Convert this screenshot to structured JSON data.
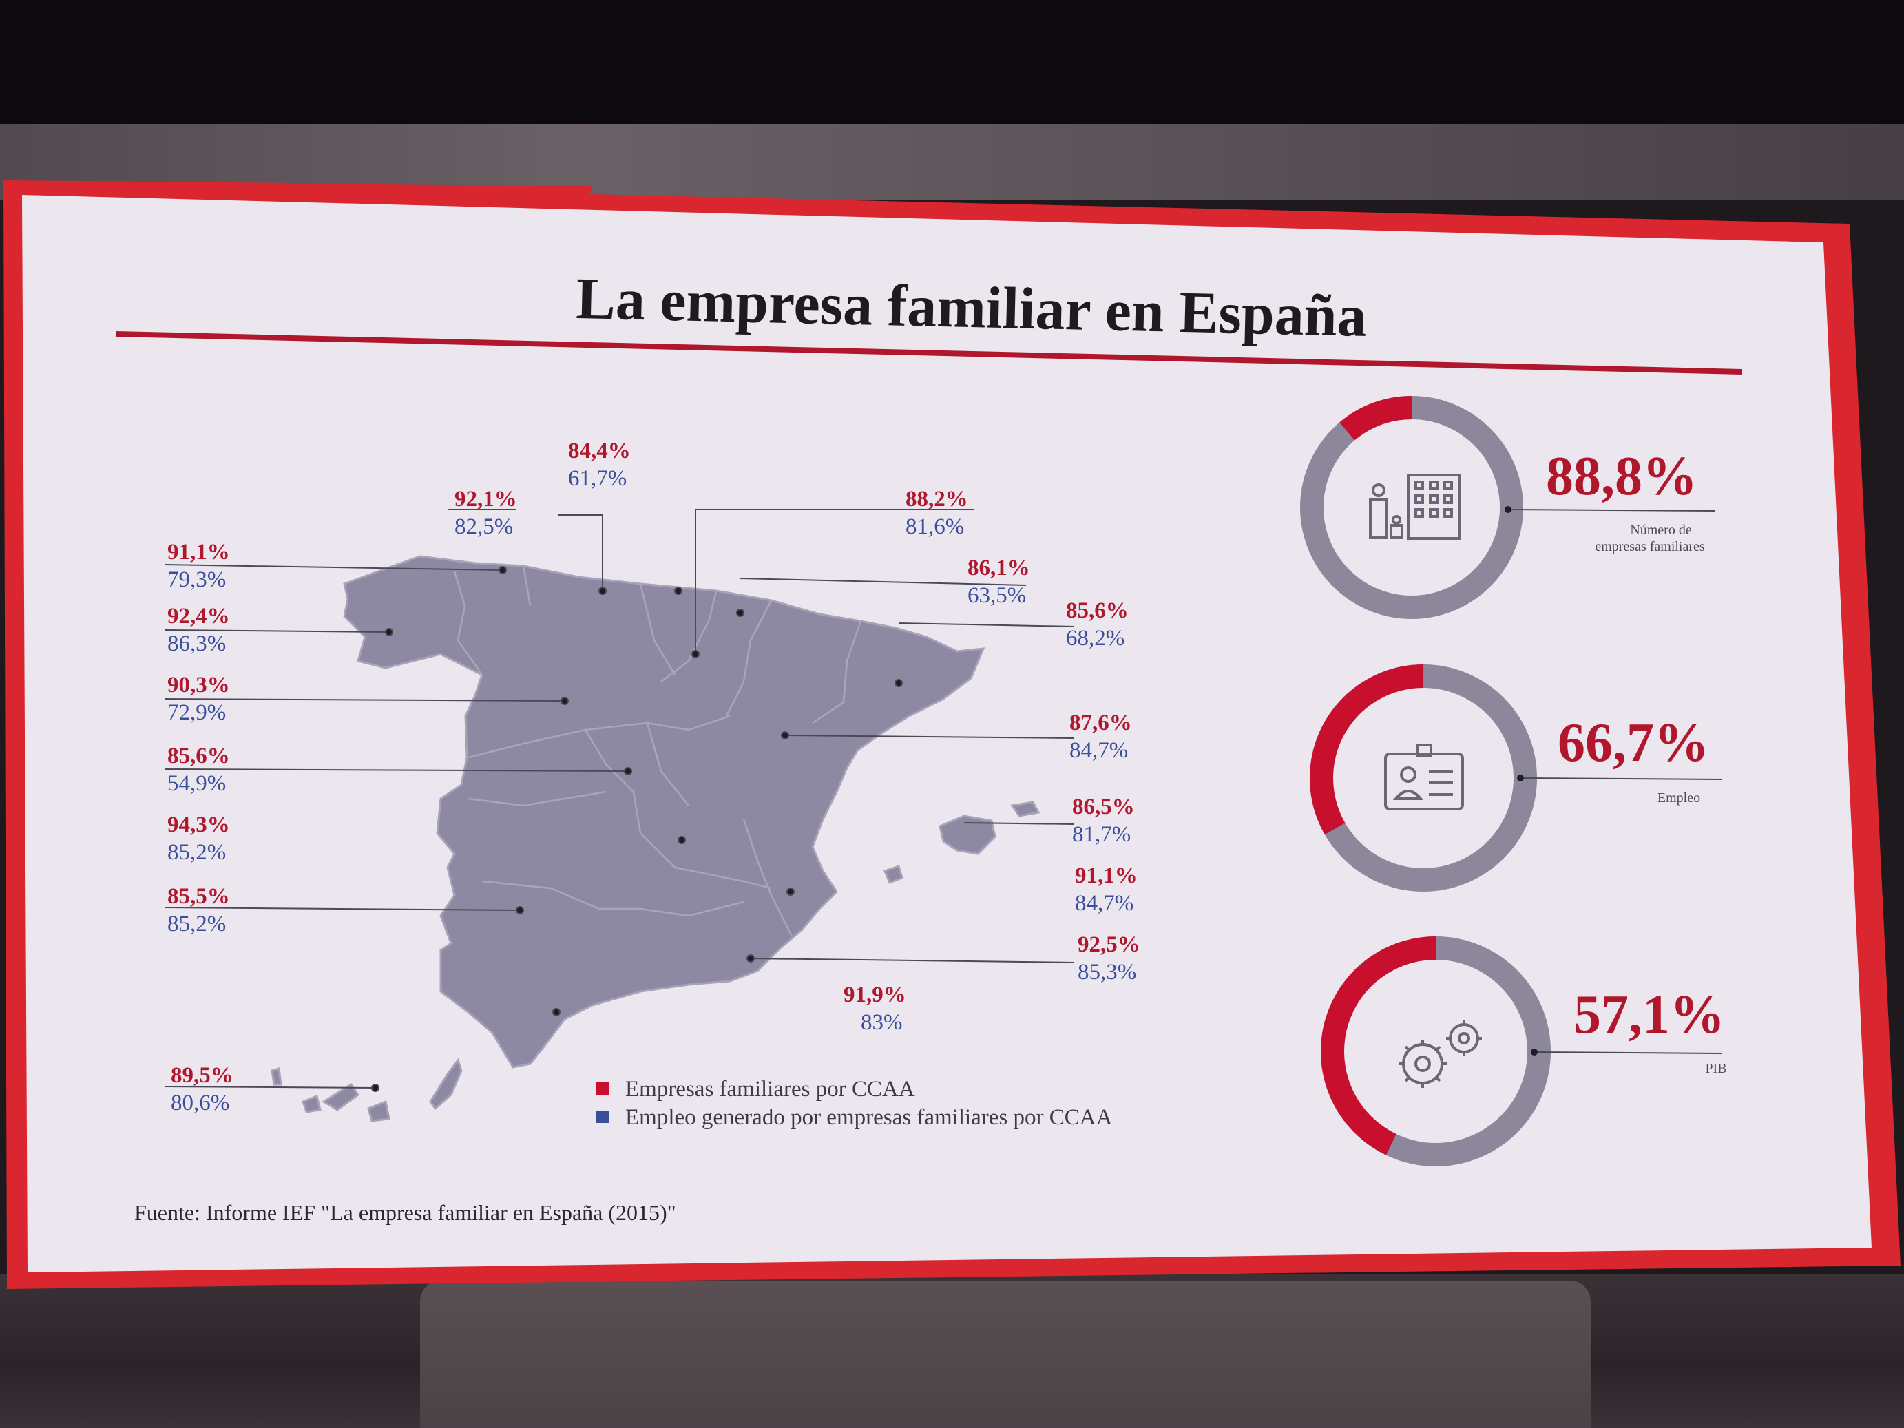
{
  "title": "La empresa familiar en España",
  "source": "Fuente: Informe IEF \"La empresa familiar en España (2015)\"",
  "legend": {
    "red": "Empresas familiares por CCAA",
    "blue": "Empleo generado por empresas familiares por CCAA"
  },
  "colors": {
    "red": "#c8102e",
    "blue": "#3a4f9a",
    "map": "#8e89a2",
    "ring": "#8c879a",
    "slide": "#ece6ef",
    "frame": "#d9262f"
  },
  "regions": [
    {
      "red": "84,4%",
      "blue": "61,7%"
    },
    {
      "red": "92,1%",
      "blue": "82,5%"
    },
    {
      "red": "88,2%",
      "blue": "81,6%"
    },
    {
      "red": "91,1%",
      "blue": "79,3%"
    },
    {
      "red": "86,1%",
      "blue": "63,5%"
    },
    {
      "red": "92,4%",
      "blue": "86,3%"
    },
    {
      "red": "85,6%",
      "blue": "68,2%"
    },
    {
      "red": "90,3%",
      "blue": "72,9%"
    },
    {
      "red": "87,6%",
      "blue": "84,7%"
    },
    {
      "red": "85,6%",
      "blue": "54,9%"
    },
    {
      "red": "86,5%",
      "blue": "81,7%"
    },
    {
      "red": "94,3%",
      "blue": "85,2%"
    },
    {
      "red": "91,1%",
      "blue": "84,7%"
    },
    {
      "red": "85,5%",
      "blue": "85,2%"
    },
    {
      "red": "92,5%",
      "blue": "85,3%"
    },
    {
      "red": "91,9%",
      "blue": "83%"
    },
    {
      "red": "89,5%",
      "blue": "80,6%"
    }
  ],
  "kpis": [
    {
      "value": "88,8%",
      "label_line1": "Número de",
      "label_line2": "empresas familiares",
      "fraction": 0.888,
      "icon": "building-family-icon"
    },
    {
      "value": "66,7%",
      "label_line1": "Empleo",
      "label_line2": "",
      "fraction": 0.667,
      "icon": "id-badge-icon"
    },
    {
      "value": "57,1%",
      "label_line1": "PIB",
      "label_line2": "",
      "fraction": 0.571,
      "icon": "gears-icon"
    }
  ]
}
